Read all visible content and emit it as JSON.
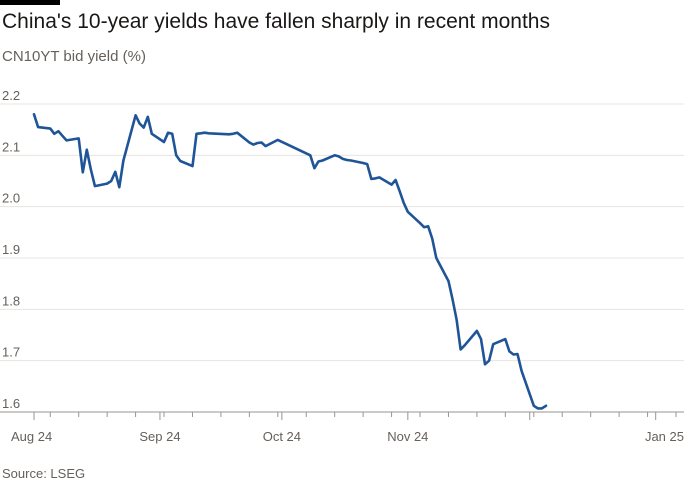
{
  "header": {
    "title": "China's 10-year yields have fallen sharply in recent months",
    "subtitle": "CN10YT bid yield (%)"
  },
  "footer": {
    "source": "Source: LSEG"
  },
  "colors": {
    "line": "#1f5597",
    "grid": "#e8e4e0",
    "text": "#66605c",
    "title": "#1a1817",
    "brand_bar": "#000000"
  },
  "chart_data": {
    "type": "line",
    "title": "China's 10-year yields have fallen sharply in recent months",
    "subtitle": "CN10YT bid yield (%)",
    "xlabel": "",
    "ylabel": "CN10YT bid yield (%)",
    "ylim": [
      1.6,
      2.2
    ],
    "xlim": [
      "2024-08-01",
      "2025-01-06"
    ],
    "grid": true,
    "legend": "none",
    "y_ticks": [
      {
        "value": 1.6,
        "label": "1.6"
      },
      {
        "value": 1.7,
        "label": "1.7"
      },
      {
        "value": 1.8,
        "label": "1.8"
      },
      {
        "value": 1.9,
        "label": "1.9"
      },
      {
        "value": 2.0,
        "label": "2.0"
      },
      {
        "value": 2.1,
        "label": "2.1"
      },
      {
        "value": 2.2,
        "label": "2.2"
      }
    ],
    "x_ticks": [
      {
        "date": "2024-08-01",
        "label": "Aug 24"
      },
      {
        "date": "2024-09-01",
        "label": "Sep 24"
      },
      {
        "date": "2024-10-01",
        "label": "Oct 24"
      },
      {
        "date": "2024-11-01",
        "label": "Nov 24"
      },
      {
        "date": "2025-01-01",
        "label": "Jan 25"
      }
    ],
    "series": [
      {
        "values": [
          [
            "2024-08-01",
            2.18
          ],
          [
            "2024-08-02",
            2.155
          ],
          [
            "2024-08-05",
            2.152
          ],
          [
            "2024-08-06",
            2.142
          ],
          [
            "2024-08-07",
            2.147
          ],
          [
            "2024-08-08",
            2.138
          ],
          [
            "2024-08-09",
            2.129
          ],
          [
            "2024-08-12",
            2.133
          ],
          [
            "2024-08-13",
            2.067
          ],
          [
            "2024-08-14",
            2.111
          ],
          [
            "2024-08-15",
            2.072
          ],
          [
            "2024-08-16",
            2.04
          ],
          [
            "2024-08-19",
            2.045
          ],
          [
            "2024-08-20",
            2.05
          ],
          [
            "2024-08-21",
            2.068
          ],
          [
            "2024-08-22",
            2.038
          ],
          [
            "2024-08-23",
            2.09
          ],
          [
            "2024-08-26",
            2.178
          ],
          [
            "2024-08-27",
            2.162
          ],
          [
            "2024-08-28",
            2.154
          ],
          [
            "2024-08-29",
            2.175
          ],
          [
            "2024-08-30",
            2.142
          ],
          [
            "2024-09-02",
            2.126
          ],
          [
            "2024-09-03",
            2.144
          ],
          [
            "2024-09-04",
            2.142
          ],
          [
            "2024-09-05",
            2.1
          ],
          [
            "2024-09-06",
            2.089
          ],
          [
            "2024-09-09",
            2.079
          ],
          [
            "2024-09-10",
            2.142
          ],
          [
            "2024-09-11",
            2.143
          ],
          [
            "2024-09-12",
            2.144
          ],
          [
            "2024-09-13",
            2.143
          ],
          [
            "2024-09-18",
            2.141
          ],
          [
            "2024-09-19",
            2.142
          ],
          [
            "2024-09-20",
            2.144
          ],
          [
            "2024-09-23",
            2.125
          ],
          [
            "2024-09-24",
            2.121
          ],
          [
            "2024-09-25",
            2.124
          ],
          [
            "2024-09-26",
            2.125
          ],
          [
            "2024-09-27",
            2.118
          ],
          [
            "2024-09-30",
            2.13
          ],
          [
            "2024-10-08",
            2.1
          ],
          [
            "2024-10-09",
            2.075
          ],
          [
            "2024-10-10",
            2.088
          ],
          [
            "2024-10-11",
            2.09
          ],
          [
            "2024-10-14",
            2.1
          ],
          [
            "2024-10-15",
            2.098
          ],
          [
            "2024-10-16",
            2.093
          ],
          [
            "2024-10-17",
            2.091
          ],
          [
            "2024-10-18",
            2.09
          ],
          [
            "2024-10-21",
            2.085
          ],
          [
            "2024-10-22",
            2.083
          ],
          [
            "2024-10-23",
            2.054
          ],
          [
            "2024-10-24",
            2.055
          ],
          [
            "2024-10-25",
            2.057
          ],
          [
            "2024-10-28",
            2.043
          ],
          [
            "2024-10-29",
            2.052
          ],
          [
            "2024-10-30",
            2.03
          ],
          [
            "2024-10-31",
            2.007
          ],
          [
            "2024-11-01",
            1.99
          ],
          [
            "2024-11-04",
            1.968
          ],
          [
            "2024-11-05",
            1.96
          ],
          [
            "2024-11-06",
            1.962
          ],
          [
            "2024-11-07",
            1.938
          ],
          [
            "2024-11-08",
            1.9
          ],
          [
            "2024-11-11",
            1.855
          ],
          [
            "2024-11-12",
            1.82
          ],
          [
            "2024-11-13",
            1.78
          ],
          [
            "2024-11-14",
            1.722
          ],
          [
            "2024-11-15",
            1.73
          ],
          [
            "2024-11-18",
            1.758
          ],
          [
            "2024-11-19",
            1.742
          ],
          [
            "2024-11-20",
            1.693
          ],
          [
            "2024-11-21",
            1.7
          ],
          [
            "2024-11-22",
            1.732
          ],
          [
            "2024-11-25",
            1.742
          ],
          [
            "2024-11-26",
            1.718
          ],
          [
            "2024-11-27",
            1.712
          ],
          [
            "2024-11-28",
            1.713
          ],
          [
            "2024-11-29",
            1.68
          ],
          [
            "2024-12-02",
            1.612
          ],
          [
            "2024-12-03",
            1.607
          ],
          [
            "2024-12-04",
            1.607
          ],
          [
            "2024-12-05",
            1.612
          ]
        ]
      }
    ]
  }
}
